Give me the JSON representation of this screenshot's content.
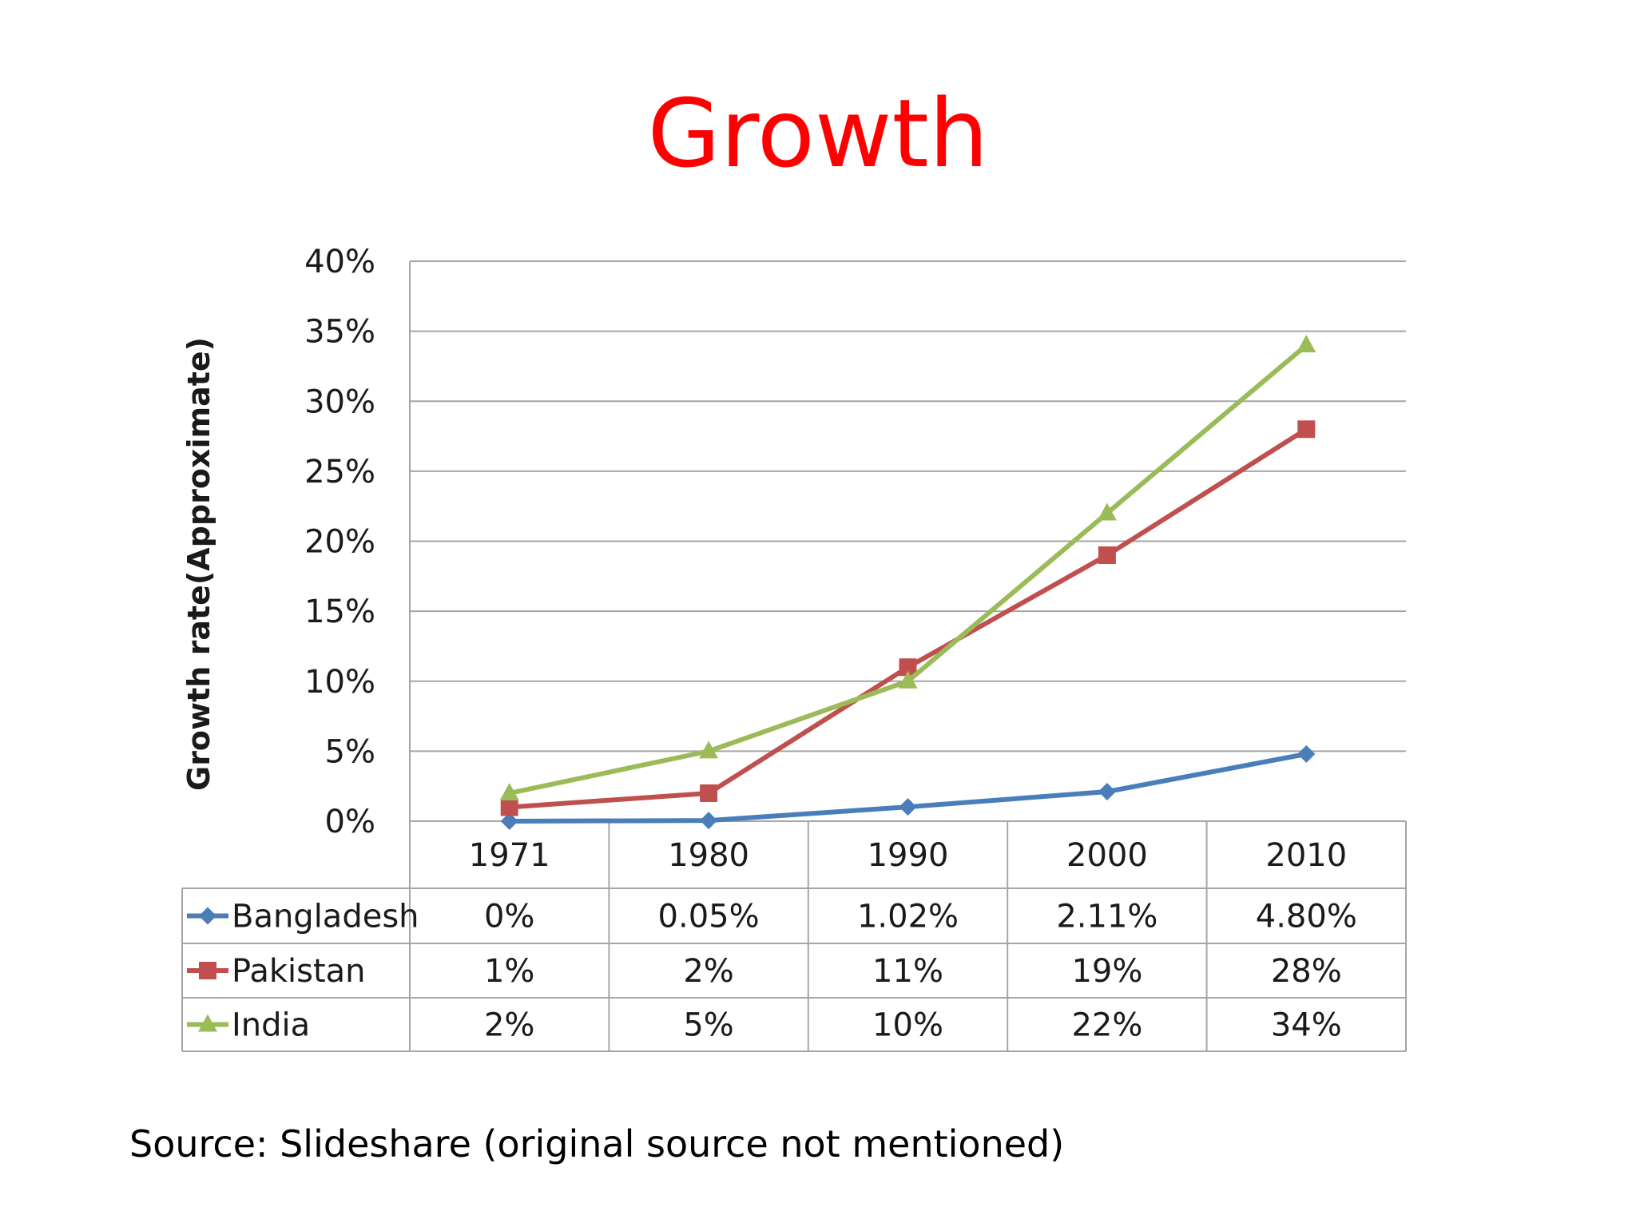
{
  "slide": {
    "title": "Growth",
    "source": "Source: Slideshare (original source not mentioned)"
  },
  "chart_data": {
    "type": "line",
    "ylabel": "Growth rate(Approximate)",
    "xlabel": "",
    "ylim": [
      0,
      40
    ],
    "y_ticks": [
      "0%",
      "5%",
      "10%",
      "15%",
      "20%",
      "25%",
      "30%",
      "35%",
      "40%"
    ],
    "y_tick_values": [
      0,
      5,
      10,
      15,
      20,
      25,
      30,
      35,
      40
    ],
    "grid": true,
    "legend_placement": "data-table",
    "categories": [
      "1971",
      "1980",
      "1990",
      "2000",
      "2010"
    ],
    "series": [
      {
        "name": "Bangladesh",
        "color": "#4a7ebb",
        "marker": "diamond",
        "values": [
          0,
          0.05,
          1.02,
          2.11,
          4.8
        ],
        "labels": [
          "0%",
          "0.05%",
          "1.02%",
          "2.11%",
          "4.80%"
        ]
      },
      {
        "name": "Pakistan",
        "color": "#c0504d",
        "marker": "square",
        "values": [
          1,
          2,
          11,
          19,
          28
        ],
        "labels": [
          "1%",
          "2%",
          "11%",
          "19%",
          "28%"
        ]
      },
      {
        "name": "India",
        "color": "#9bbb59",
        "marker": "triangle",
        "values": [
          2,
          5,
          10,
          22,
          34
        ],
        "labels": [
          "2%",
          "5%",
          "10%",
          "22%",
          "34%"
        ]
      }
    ]
  }
}
